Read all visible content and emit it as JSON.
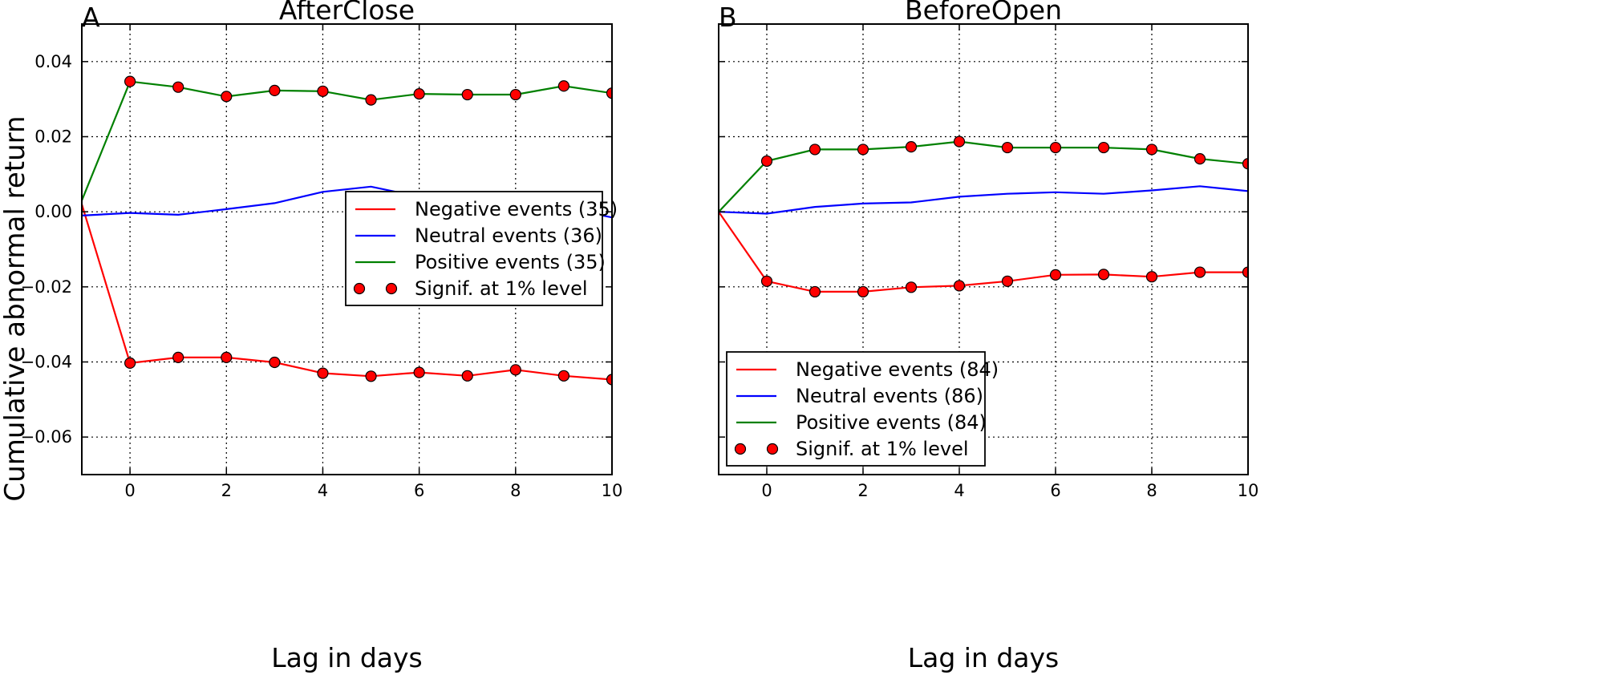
{
  "figure": {
    "ylabel": "Cumulative abnormal return"
  },
  "colors": {
    "negative": "#ff0000",
    "neutral": "#0000ff",
    "positive": "#008000",
    "signif_marker": "#ff0000",
    "grid": "#000000"
  },
  "chart_data": [
    {
      "type": "line",
      "panel_letter": "A",
      "title": "AfterClose",
      "xlabel": "Lag in days",
      "ylabel": "Cumulative abnormal return",
      "xlim": [
        -1,
        10
      ],
      "ylim": [
        -0.07,
        0.05
      ],
      "xticks": [
        0,
        2,
        4,
        6,
        8,
        10
      ],
      "yticks": [
        -0.06,
        -0.04,
        -0.02,
        0.0,
        0.02,
        0.04
      ],
      "ytick_labels": [
        "−0.06",
        "−0.04",
        "−0.02",
        "0.00",
        "0.02",
        "0.04"
      ],
      "grid": true,
      "legend_position": "center-right",
      "x": [
        -1,
        0,
        1,
        2,
        3,
        4,
        5,
        6,
        7,
        8,
        9,
        10
      ],
      "series": [
        {
          "name": "Negative events (35)",
          "color_key": "negative",
          "values": [
            0.002,
            -0.0403,
            -0.0388,
            -0.0388,
            -0.0401,
            -0.043,
            -0.0438,
            -0.0428,
            -0.0437,
            -0.0421,
            -0.0437,
            -0.0447
          ],
          "significant": [
            false,
            true,
            true,
            true,
            true,
            true,
            true,
            true,
            true,
            true,
            true,
            true
          ]
        },
        {
          "name": "Neutral events (36)",
          "color_key": "neutral",
          "values": [
            -0.001,
            -0.0003,
            -0.0008,
            0.0007,
            0.0023,
            0.0053,
            0.0067,
            0.004,
            0.003,
            0.0025,
            0.001,
            -0.0015
          ],
          "significant": [
            false,
            false,
            false,
            false,
            false,
            false,
            false,
            false,
            false,
            false,
            false,
            false
          ]
        },
        {
          "name": "Positive events (35)",
          "color_key": "positive",
          "values": [
            0.003,
            0.0347,
            0.0332,
            0.0307,
            0.0323,
            0.0321,
            0.0298,
            0.0314,
            0.0312,
            0.0312,
            0.0335,
            0.0316
          ],
          "significant": [
            false,
            true,
            true,
            true,
            true,
            true,
            true,
            true,
            true,
            true,
            true,
            true
          ]
        }
      ],
      "legend_marker_label": "Signif. at 1% level"
    },
    {
      "type": "line",
      "panel_letter": "B",
      "title": "BeforeOpen",
      "xlabel": "Lag in days",
      "xlim": [
        -1,
        10
      ],
      "ylim": [
        -0.07,
        0.05
      ],
      "xticks": [
        0,
        2,
        4,
        6,
        8,
        10
      ],
      "grid": true,
      "legend_position": "lower-left",
      "x": [
        -1,
        0,
        1,
        2,
        3,
        4,
        5,
        6,
        7,
        8,
        9,
        10
      ],
      "series": [
        {
          "name": "Negative events (84)",
          "color_key": "negative",
          "values": [
            0.0,
            -0.0185,
            -0.0213,
            -0.0213,
            -0.0201,
            -0.0197,
            -0.0185,
            -0.0168,
            -0.0167,
            -0.0173,
            -0.0161,
            -0.0161
          ],
          "significant": [
            false,
            true,
            true,
            true,
            true,
            true,
            true,
            true,
            true,
            true,
            true,
            true
          ]
        },
        {
          "name": "Neutral events (86)",
          "color_key": "neutral",
          "values": [
            0.0,
            -0.0005,
            0.0013,
            0.0022,
            0.0025,
            0.004,
            0.0048,
            0.0052,
            0.0048,
            0.0057,
            0.0068,
            0.0055
          ],
          "significant": [
            false,
            false,
            false,
            false,
            false,
            false,
            false,
            false,
            false,
            false,
            false,
            false
          ]
        },
        {
          "name": "Positive events (84)",
          "color_key": "positive",
          "values": [
            0.0,
            0.0135,
            0.0166,
            0.0166,
            0.0173,
            0.0187,
            0.0171,
            0.0171,
            0.0171,
            0.0166,
            0.0141,
            0.0128
          ],
          "significant": [
            false,
            true,
            true,
            true,
            true,
            true,
            true,
            true,
            true,
            true,
            true,
            true
          ]
        }
      ],
      "legend_marker_label": "Signif. at 1% level"
    }
  ]
}
